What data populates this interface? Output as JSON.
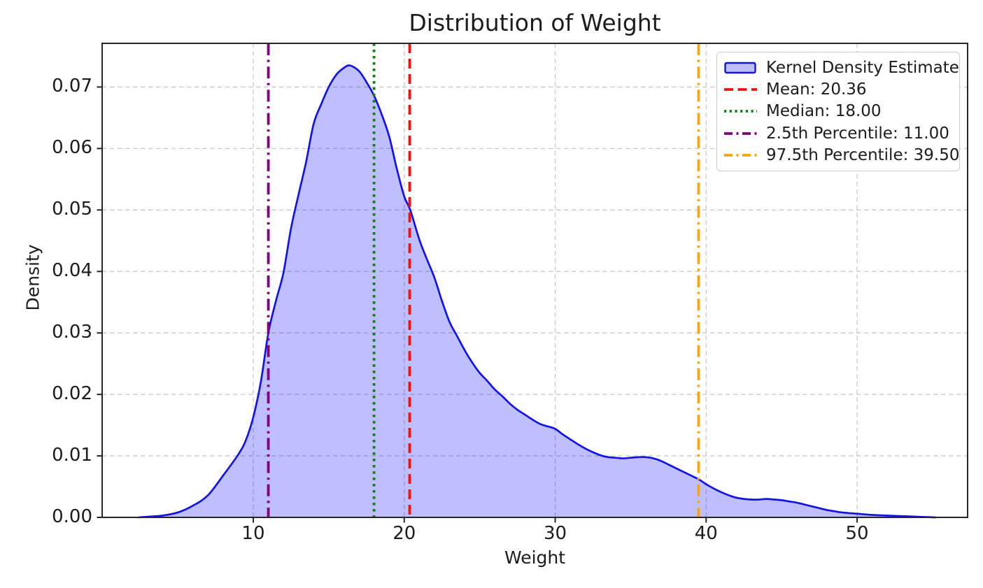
{
  "title": "Distribution of Weight",
  "axes": {
    "xlabel": "Weight",
    "ylabel": "Density",
    "x_ticks": [
      10,
      20,
      30,
      40,
      50
    ],
    "y_ticks": [
      {
        "value": 0.0,
        "label": "0.00"
      },
      {
        "value": 0.01,
        "label": "0.01"
      },
      {
        "value": 0.02,
        "label": "0.02"
      },
      {
        "value": 0.03,
        "label": "0.03"
      },
      {
        "value": 0.04,
        "label": "0.04"
      },
      {
        "value": 0.05,
        "label": "0.05"
      },
      {
        "value": 0.06,
        "label": "0.06"
      },
      {
        "value": 0.07,
        "label": "0.07"
      }
    ]
  },
  "colors": {
    "kde_line": "#1414e0",
    "kde_fill": "rgba(0,0,255,0.25)",
    "mean": "#ee1111",
    "median": "#0d800d",
    "percentile_low": "#800080",
    "percentile_high": "#ffa500",
    "grid": "#c9c9c9",
    "spine": "#262626",
    "text": "#1c1c1c",
    "legend_border": "#cccccc"
  },
  "legend": {
    "items": [
      {
        "name": "kde",
        "label": "Kernel Density Estimate",
        "sample": "patch"
      },
      {
        "name": "mean",
        "label": "Mean: 20.36",
        "sample": "dashed"
      },
      {
        "name": "median",
        "label": "Median: 18.00",
        "sample": "dotted"
      },
      {
        "name": "percentile-low",
        "label": "2.5th Percentile: 11.00",
        "sample": "dashdot"
      },
      {
        "name": "percentile-high",
        "label": "97.5th Percentile: 39.50",
        "sample": "dashdot"
      }
    ]
  },
  "chart_data": {
    "type": "area",
    "title": "Distribution of Weight",
    "xlabel": "Weight",
    "ylabel": "Density",
    "xlim": [
      -0.01,
      57.32
    ],
    "ylim": [
      0,
      0.0771
    ],
    "grid": true,
    "grid_style": "dashed",
    "legend_position": "upper right",
    "series": [
      {
        "name": "Kernel Density Estimate",
        "x": [
          2.4,
          3,
          4,
          5,
          6,
          7,
          8,
          9,
          9.5,
          10,
          10.5,
          11,
          11.5,
          12,
          12.5,
          13,
          13.5,
          14,
          14.5,
          15,
          15.5,
          16,
          16.4,
          17,
          17.5,
          18,
          18.5,
          19,
          19.5,
          20,
          20.4,
          21,
          21.5,
          22,
          22.5,
          23,
          23.5,
          24,
          24.5,
          25,
          25.5,
          26,
          26.5,
          27,
          27.5,
          28,
          28.5,
          29,
          29.5,
          30,
          30.5,
          31,
          31.5,
          32,
          32.5,
          33,
          33.5,
          34,
          34.5,
          35,
          35.5,
          36,
          36.5,
          37,
          37.5,
          38,
          38.5,
          39,
          39.5,
          40,
          40.5,
          41,
          41.5,
          42,
          42.5,
          43,
          43.5,
          44,
          44.5,
          45,
          45.5,
          46,
          46.5,
          47,
          47.5,
          48,
          48.5,
          49,
          50,
          51,
          52,
          53,
          54,
          55.2
        ],
        "y": [
          0,
          0.0001,
          0.0003,
          0.0008,
          0.0019,
          0.0036,
          0.0068,
          0.0102,
          0.0125,
          0.0163,
          0.022,
          0.03,
          0.0352,
          0.0398,
          0.047,
          0.0525,
          0.0578,
          0.064,
          0.0672,
          0.07,
          0.072,
          0.0731,
          0.0735,
          0.0726,
          0.0708,
          0.0686,
          0.0656,
          0.062,
          0.0568,
          0.0522,
          0.05,
          0.0452,
          0.042,
          0.039,
          0.0352,
          0.0318,
          0.0295,
          0.0272,
          0.0252,
          0.0235,
          0.0222,
          0.0208,
          0.0197,
          0.0185,
          0.0175,
          0.0167,
          0.0159,
          0.0152,
          0.0148,
          0.0144,
          0.0135,
          0.0127,
          0.0119,
          0.0112,
          0.0106,
          0.0101,
          0.0098,
          0.0097,
          0.0096,
          0.0097,
          0.0098,
          0.0098,
          0.0096,
          0.0092,
          0.0086,
          0.008,
          0.0074,
          0.0068,
          0.0062,
          0.0054,
          0.0047,
          0.0041,
          0.0036,
          0.0032,
          0.003,
          0.0029,
          0.0029,
          0.003,
          0.0029,
          0.0028,
          0.0026,
          0.0024,
          0.0021,
          0.0018,
          0.0015,
          0.0012,
          0.001,
          0.0008,
          0.0006,
          0.0004,
          0.0003,
          0.0002,
          0.0001,
          0
        ]
      }
    ],
    "markers": [
      {
        "name": "mean",
        "label": "Mean: 20.36",
        "value": 20.36,
        "style": "dashed",
        "color_key": "mean"
      },
      {
        "name": "median",
        "label": "Median: 18.00",
        "value": 18.0,
        "style": "dotted",
        "color_key": "median"
      },
      {
        "name": "percentile-low",
        "label": "2.5th Percentile: 11.00",
        "value": 11.0,
        "style": "dashdot",
        "color_key": "percentile_low"
      },
      {
        "name": "percentile-high",
        "label": "97.5th Percentile: 39.50",
        "value": 39.5,
        "style": "dashdot",
        "color_key": "percentile_high"
      }
    ]
  }
}
